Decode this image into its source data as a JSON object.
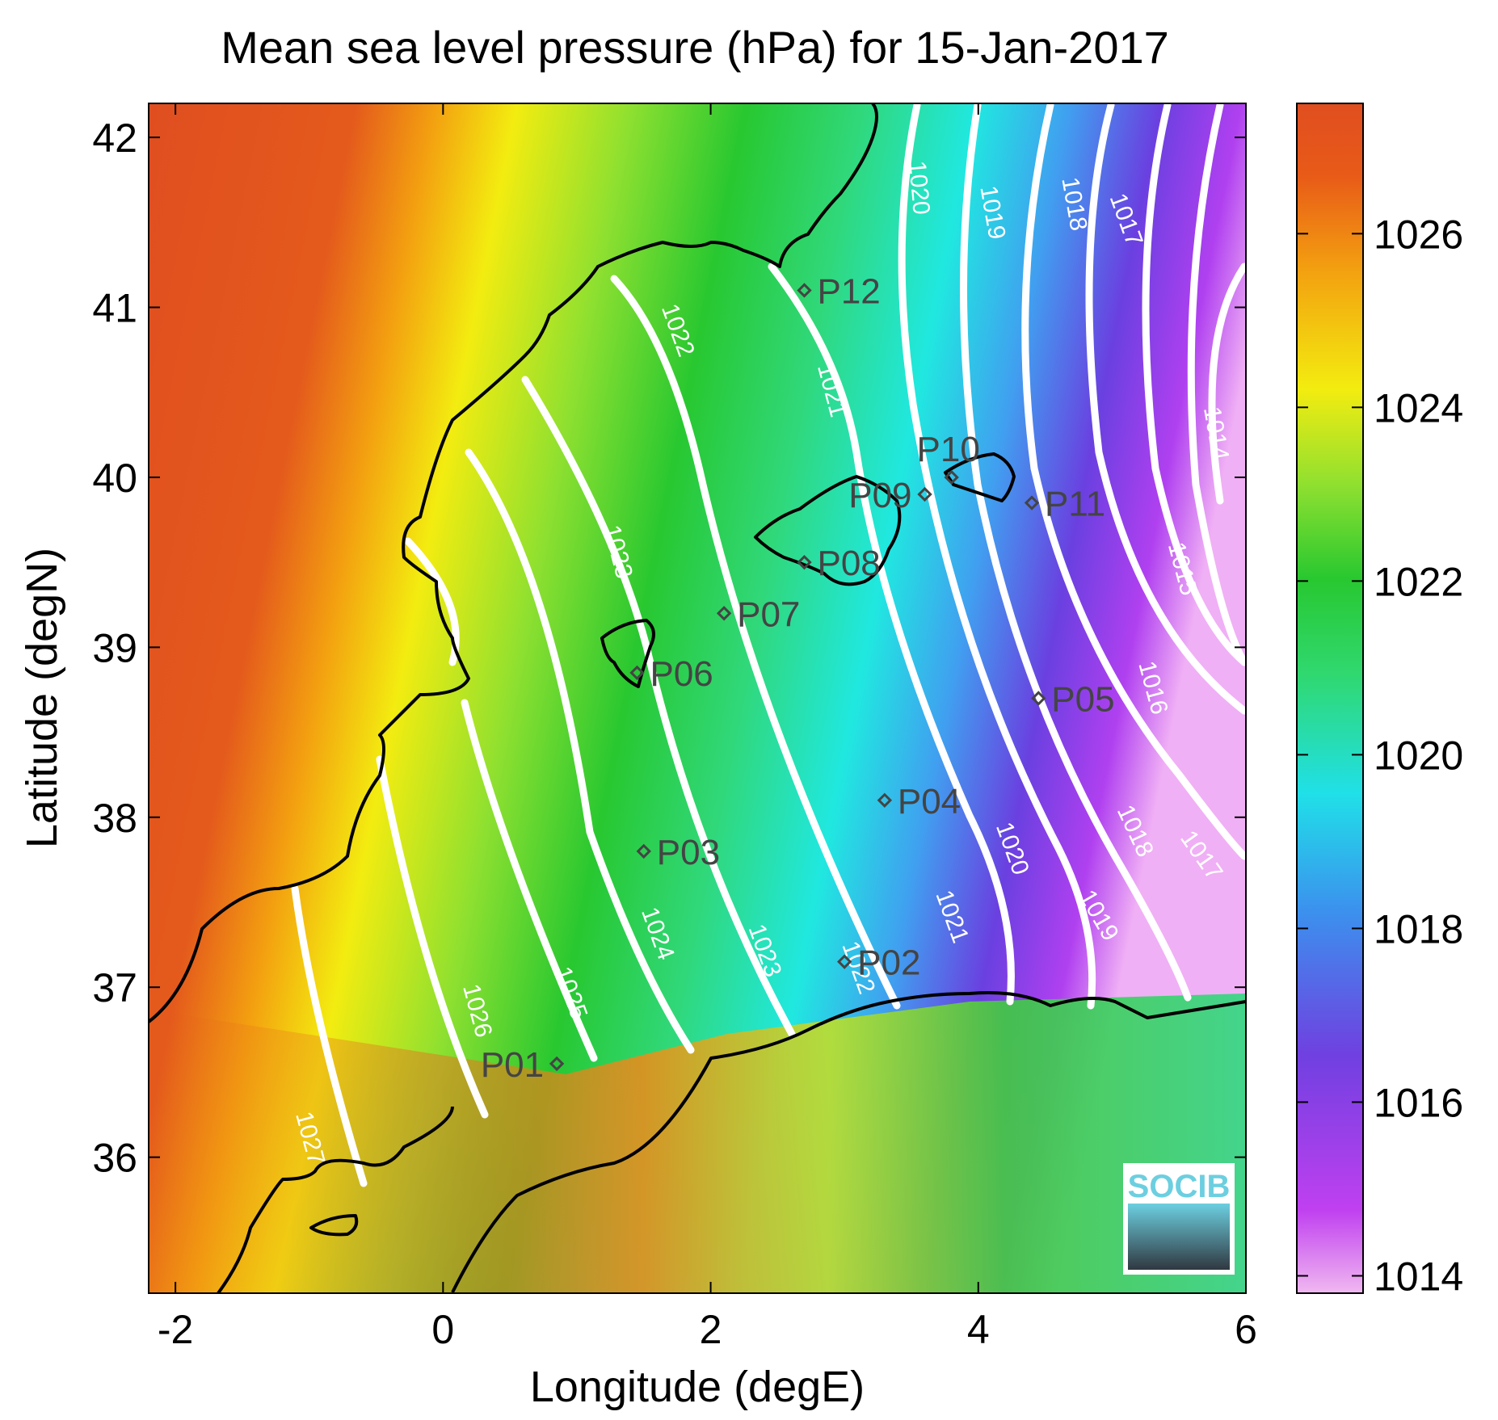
{
  "title": "Mean sea level pressure (hPa) for 15-Jan-2017",
  "xlabel": "Longitude (degE)",
  "ylabel": "Latitude (degN)",
  "logo": "SOCIB",
  "chart_data": {
    "type": "heatmap",
    "x_range": [
      -2.2,
      6
    ],
    "y_range": [
      35.2,
      42.2
    ],
    "x_ticks": [
      -2,
      0,
      2,
      4,
      6
    ],
    "y_ticks": [
      36,
      37,
      38,
      39,
      40,
      41,
      42
    ],
    "colorbar": {
      "range": [
        1013.8,
        1027.5
      ],
      "ticks": [
        1014,
        1016,
        1018,
        1020,
        1022,
        1024,
        1026
      ]
    },
    "contour_levels": [
      1014,
      1015,
      1016,
      1017,
      1018,
      1019,
      1020,
      1021,
      1022,
      1023,
      1024,
      1025,
      1026,
      1027
    ],
    "stations": [
      {
        "label": "P01",
        "lon": 0.85,
        "lat": 36.55
      },
      {
        "label": "P02",
        "lon": 3.0,
        "lat": 37.15
      },
      {
        "label": "P03",
        "lon": 1.5,
        "lat": 37.8
      },
      {
        "label": "P04",
        "lon": 3.3,
        "lat": 38.1
      },
      {
        "label": "P05",
        "lon": 4.45,
        "lat": 38.7
      },
      {
        "label": "P06",
        "lon": 1.45,
        "lat": 38.85
      },
      {
        "label": "P07",
        "lon": 2.1,
        "lat": 39.2
      },
      {
        "label": "P08",
        "lon": 2.7,
        "lat": 39.5
      },
      {
        "label": "P09",
        "lon": 3.6,
        "lat": 39.9
      },
      {
        "label": "P10",
        "lon": 3.8,
        "lat": 40.0
      },
      {
        "label": "P11",
        "lon": 4.4,
        "lat": 39.85
      },
      {
        "label": "P12",
        "lon": 2.7,
        "lat": 41.1
      }
    ]
  }
}
